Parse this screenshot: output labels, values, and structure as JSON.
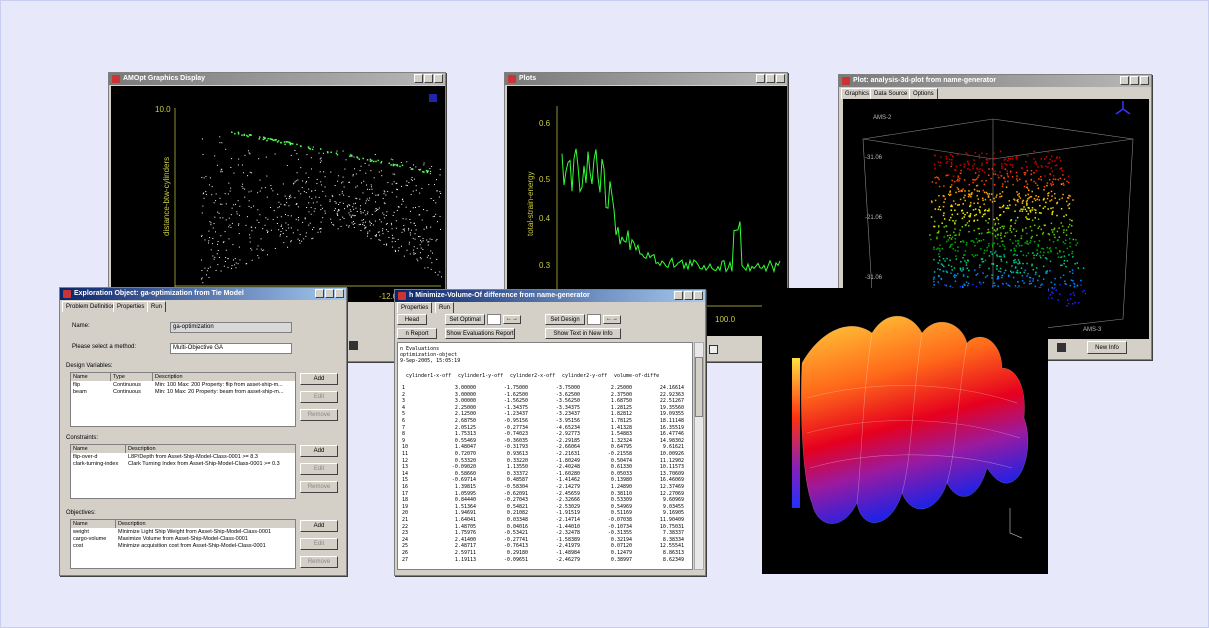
{
  "graphics_display": {
    "title": "AMOpt Graphics Display",
    "y_label": "distance-btw-cylinders",
    "ticks": [
      "10.0",
      "0.0",
      "-12.0"
    ]
  },
  "plots": {
    "title": "Plots",
    "y_label": "total-strain-energy",
    "ticks": [
      "0.6",
      "0.5",
      "0.4",
      "0.3",
      "100.0"
    ]
  },
  "plot_3d": {
    "title": "Plot: analysis-3d-plot from name-generator",
    "tabs": [
      "Graphics",
      "Data Source",
      "Options"
    ],
    "axis_labels": [
      "AMS-2",
      "-31.06",
      "-21.06",
      "-31.06",
      "AMS-3"
    ],
    "button": "New Info"
  },
  "exploration": {
    "title": "Exploration Object: ga-optimization from Tie Model",
    "tabs": [
      "Problem Definition",
      "Properties",
      "Run"
    ],
    "name_label": "Name:",
    "name_value": "ga-optimization",
    "method_label": "Please select a method:",
    "method_value": "Multi-Objective GA",
    "design_variables": {
      "label": "Design Variables:",
      "columns": [
        "Name",
        "Type",
        "Description"
      ],
      "rows": [
        [
          "flip",
          "Continuous",
          "Min: 100 Max: 200 Property: flip from asset-ship-m..."
        ],
        [
          "beam",
          "Continuous",
          "Min: 10 Max: 20 Property: beam from asset-ship-m..."
        ]
      ]
    },
    "constraints": {
      "label": "Constraints:",
      "columns": [
        "Name",
        "Description"
      ],
      "rows": [
        [
          "flip-over-d",
          "L8P/Depth from Asset-Ship-Model-Class-0001 >= 8.3"
        ],
        [
          "clark-turning-index",
          "Clark Turning Index from Asset-Ship-Model-Class-0001 >= 0.3"
        ]
      ]
    },
    "objectives": {
      "label": "Objectives:",
      "columns": [
        "Name",
        "Description"
      ],
      "rows": [
        [
          "weight",
          "Minimize Light Ship Weight from Asset-Ship-Model-Class-0001"
        ],
        [
          "cargo-volume",
          "Maximize Volume from Asset-Ship-Model-Class-0001"
        ],
        [
          "cost",
          "Minimize acquisition cost from Asset-Ship-Model-Class-0001"
        ]
      ]
    },
    "buttons": [
      "Add",
      "Edit",
      "Remove"
    ]
  },
  "evaluations": {
    "title": "h Minimize-Volume-Of difference from name-generator",
    "tabs": [
      "Properties",
      "Run"
    ],
    "buttons": [
      "Head",
      "Set Optimal",
      "Set Design",
      "n Report",
      "Show Evaluations Report",
      "Show Text in New Info"
    ],
    "header_lines": [
      "n Evaluations",
      "optimization-object",
      "9-Sep-2005, 15:05:19"
    ],
    "columns": [
      "cylinder1-x-off",
      "cylinder1-y-off",
      "cylinder2-x-off",
      "cylinder2-y-off",
      "volume-of-diffe"
    ],
    "rows": [
      [
        "1",
        "3.00000",
        "-1.75000",
        "-3.75000",
        "2.25000",
        "24.16614"
      ],
      [
        "2",
        "3.00000",
        "-1.62500",
        "-3.62500",
        "2.37500",
        "22.92363"
      ],
      [
        "3",
        "3.00000",
        "-1.56250",
        "-3.56250",
        "1.68750",
        "22.51267"
      ],
      [
        "4",
        "2.25000",
        "-1.34375",
        "-3.34375",
        "1.28125",
        "19.35560"
      ],
      [
        "5",
        "2.12500",
        "-1.23437",
        "-3.23437",
        "1.82812",
        "19.09355"
      ],
      [
        "6",
        "2.68750",
        "-0.95156",
        "-3.95156",
        "1.78125",
        "18.11148"
      ],
      [
        "7",
        "2.05125",
        "-0.27734",
        "-4.65234",
        "1.41328",
        "16.35519"
      ],
      [
        "8",
        "1.75313",
        "-0.74023",
        "-2.92773",
        "1.54883",
        "16.47746"
      ],
      [
        "9",
        "0.55469",
        "-0.36035",
        "-2.29185",
        "1.32324",
        "14.98302"
      ],
      [
        "10",
        "1.48047",
        "-0.31793",
        "-2.66064",
        "0.64795",
        "9.61621"
      ],
      [
        "11",
        "0.72070",
        "0.93613",
        "-2.21631",
        "-0.21558",
        "10.00926"
      ],
      [
        "12",
        "0.53320",
        "0.33220",
        "-1.80249",
        "0.50474",
        "11.12902"
      ],
      [
        "13",
        "-0.09020",
        "1.13550",
        "-2.40248",
        "0.61330",
        "10.11573"
      ],
      [
        "14",
        "0.58660",
        "0.33372",
        "-1.60280",
        "0.05033",
        "13.70609"
      ],
      [
        "15",
        "-0.69714",
        "0.48587",
        "-1.41462",
        "0.13980",
        "16.46069"
      ],
      [
        "16",
        "1.39815",
        "-0.58304",
        "-2.14279",
        "1.24890",
        "12.37469"
      ],
      [
        "17",
        "1.05995",
        "-0.62091",
        "-2.45659",
        "0.38110",
        "12.27069"
      ],
      [
        "18",
        "0.84440",
        "-0.27043",
        "-2.32666",
        "0.53309",
        "9.60969"
      ],
      [
        "19",
        "1.51364",
        "0.54821",
        "-2.53029",
        "0.54969",
        "9.03455"
      ],
      [
        "20",
        "1.94691",
        "0.21082",
        "-1.91519",
        "0.51169",
        "9.16905"
      ],
      [
        "21",
        "1.64041",
        "0.03348",
        "-2.14714",
        "-0.07038",
        "11.90409"
      ],
      [
        "22",
        "1.48705",
        "0.04016",
        "-1.44010",
        "-0.10734",
        "10.75031"
      ],
      [
        "23",
        "1.75976",
        "-0.53421",
        "-2.32478",
        "-0.31355",
        "7.38337"
      ],
      [
        "24",
        "2.41400",
        "-0.27741",
        "-1.58389",
        "0.32194",
        "8.38334"
      ],
      [
        "25",
        "2.48717",
        "-0.76413",
        "-2.41979",
        "0.07120",
        "12.55541"
      ],
      [
        "26",
        "2.59711",
        "0.29180",
        "-1.48984",
        "0.12479",
        "8.86313"
      ],
      [
        "27",
        "1.19113",
        "-0.09651",
        "-2.46279",
        "0.38997",
        "8.62349"
      ]
    ]
  }
}
